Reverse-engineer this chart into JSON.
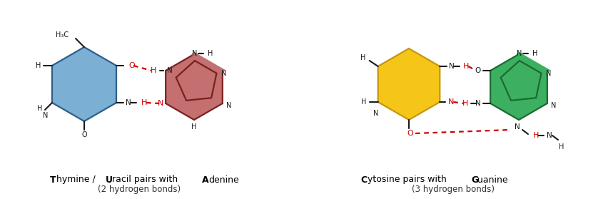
{
  "bg_color": "#ffffff",
  "thymine_fill": "#7bafd4",
  "thymine_edge": "#2c5f8a",
  "adenine_fill": "#c47070",
  "adenine_edge": "#7a2020",
  "cytosine_fill": "#f5c518",
  "cytosine_edge": "#c8960c",
  "guanine_fill": "#3cb060",
  "guanine_edge": "#1a6b30",
  "hbond_color": "#cc0000",
  "atom_color": "#1a1a1a",
  "title_left_parts": [
    "T",
    "hymine / ",
    "U",
    "racil pairs with ",
    "A",
    "denine"
  ],
  "title_right_parts": [
    "C",
    "ytosine pairs with ",
    "G",
    "uanine"
  ],
  "subtitle_left": "(2 hydrogen bonds)",
  "subtitle_right": "(3 hydrogen bonds)"
}
